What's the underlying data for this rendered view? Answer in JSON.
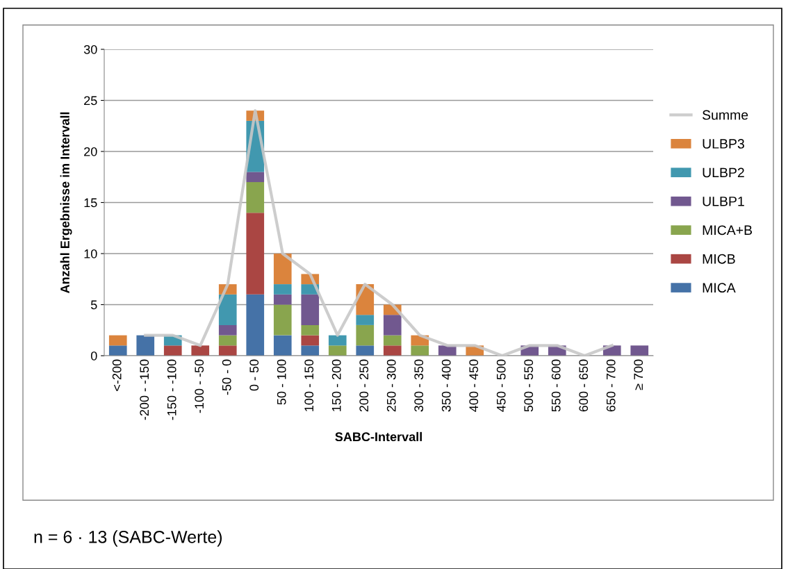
{
  "chart_data": {
    "type": "bar",
    "stacked": true,
    "xlabel": "SABC-Intervall",
    "ylabel": "Anzahl Ergebnisse im Intervall",
    "categories": [
      "<-200",
      "-200 - -150",
      "-150 - -100",
      "-100 - -50",
      "-50 - 0",
      "0 - 50",
      "50 - 100",
      "100 - 150",
      "150 - 200",
      "200 - 250",
      "250 - 300",
      "300 - 350",
      "350 - 400",
      "400 - 450",
      "450 - 500",
      "500 - 550",
      "550 - 600",
      "600 - 650",
      "650 - 700",
      "≥ 700"
    ],
    "series": [
      {
        "name": "MICA",
        "color": "#4572a7",
        "values": [
          1,
          2,
          0,
          0,
          0,
          6,
          2,
          1,
          0,
          1,
          0,
          0,
          0,
          0,
          0,
          0,
          0,
          0,
          0,
          0
        ]
      },
      {
        "name": "MICB",
        "color": "#aa4643",
        "values": [
          0,
          0,
          1,
          1,
          1,
          8,
          0,
          1,
          0,
          0,
          1,
          0,
          0,
          0,
          0,
          0,
          0,
          0,
          0,
          0
        ]
      },
      {
        "name": "MICA+B",
        "color": "#89a54e",
        "values": [
          0,
          0,
          0,
          0,
          1,
          3,
          3,
          1,
          1,
          2,
          1,
          1,
          0,
          0,
          0,
          0,
          0,
          0,
          0,
          0
        ]
      },
      {
        "name": "ULBP1",
        "color": "#71588f",
        "values": [
          0,
          0,
          0,
          0,
          1,
          1,
          1,
          3,
          0,
          0,
          2,
          0,
          1,
          0,
          0,
          1,
          1,
          0,
          1,
          1
        ]
      },
      {
        "name": "ULBP2",
        "color": "#4198af",
        "values": [
          0,
          0,
          1,
          0,
          3,
          5,
          1,
          1,
          1,
          1,
          0,
          0,
          0,
          0,
          0,
          0,
          0,
          0,
          0,
          0
        ]
      },
      {
        "name": "ULBP3",
        "color": "#db843d",
        "values": [
          1,
          0,
          0,
          0,
          1,
          1,
          3,
          1,
          0,
          3,
          1,
          1,
          0,
          1,
          0,
          0,
          0,
          0,
          0,
          0
        ]
      },
      {
        "name": "Summe",
        "type": "line",
        "color": "#c8c8c8",
        "values": [
          null,
          2,
          2,
          1,
          7,
          24,
          10,
          8,
          2,
          7,
          5,
          2,
          1,
          1,
          0,
          1,
          1,
          0,
          1,
          null
        ]
      }
    ],
    "ylim": [
      0,
      30
    ],
    "yticks": [
      0,
      5,
      10,
      15,
      20,
      25,
      30
    ],
    "grid": "y",
    "legend": "right",
    "annotations": [
      "n = 6 · 13 (SABC-Werte)"
    ]
  }
}
